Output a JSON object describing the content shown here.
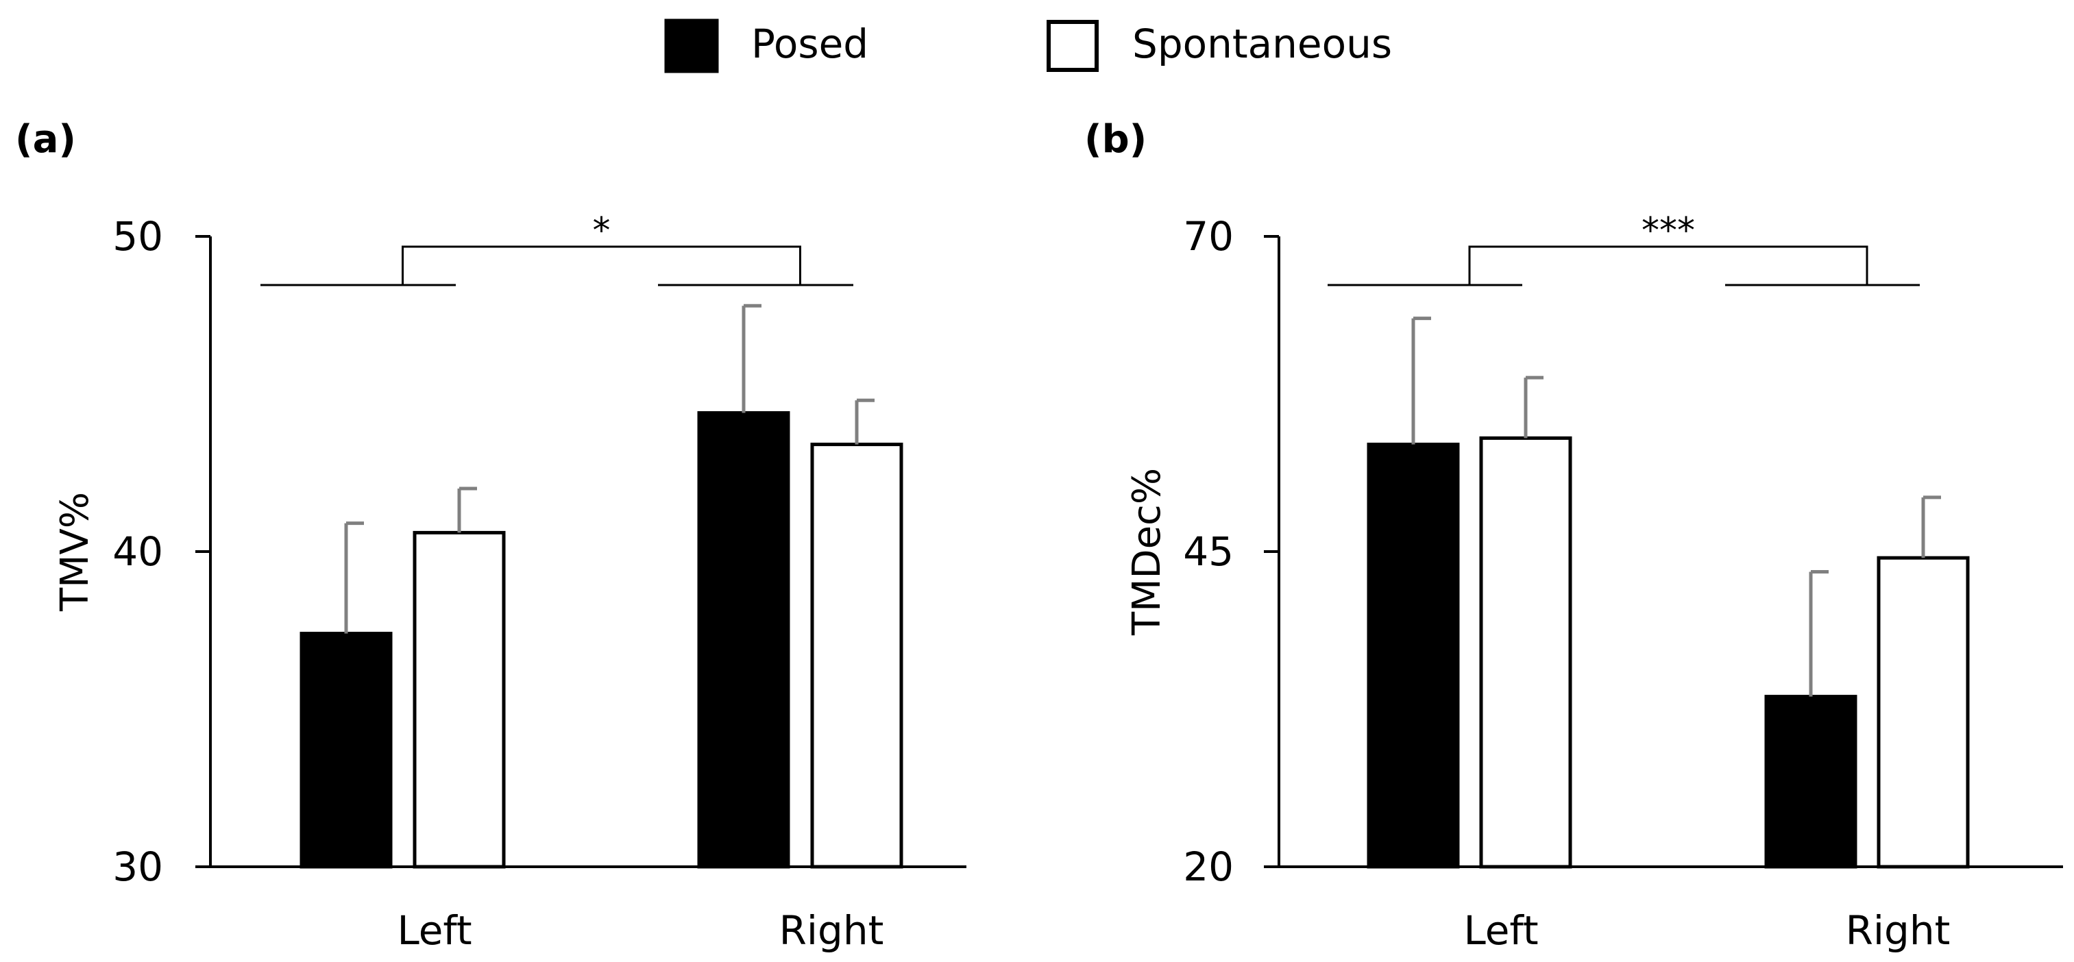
{
  "legend": [
    {
      "name": "Posed",
      "fill": "#000000",
      "stroke": "#000000"
    },
    {
      "name": "Spontaneous",
      "fill": "#ffffff",
      "stroke": "#000000"
    }
  ],
  "chart_data": [
    {
      "type": "bar",
      "panel_label": "(a)",
      "categories": [
        "Left",
        "Right"
      ],
      "series": [
        {
          "name": "Posed",
          "values": [
            37.4,
            44.4
          ],
          "errors": [
            3.5,
            3.4
          ]
        },
        {
          "name": "Spontaneous",
          "values": [
            40.6,
            43.4
          ],
          "errors": [
            1.4,
            1.4
          ]
        }
      ],
      "ylabel": "TMV%",
      "ylim": [
        30,
        50
      ],
      "yticks": [
        "30",
        "40",
        "50"
      ],
      "significance": "*",
      "error_bar_color": "#808080"
    },
    {
      "type": "bar",
      "panel_label": "(b)",
      "categories": [
        "Left",
        "Right"
      ],
      "series": [
        {
          "name": "Posed",
          "values": [
            53.5,
            33.5
          ],
          "errors": [
            10.0,
            9.9
          ]
        },
        {
          "name": "Spontaneous",
          "values": [
            54.0,
            44.5
          ],
          "errors": [
            4.8,
            4.8
          ]
        }
      ],
      "ylabel": "TMDec%",
      "ylim": [
        20,
        70
      ],
      "yticks": [
        "20",
        "45",
        "70"
      ],
      "significance": "***",
      "error_bar_color": "#808080"
    }
  ]
}
